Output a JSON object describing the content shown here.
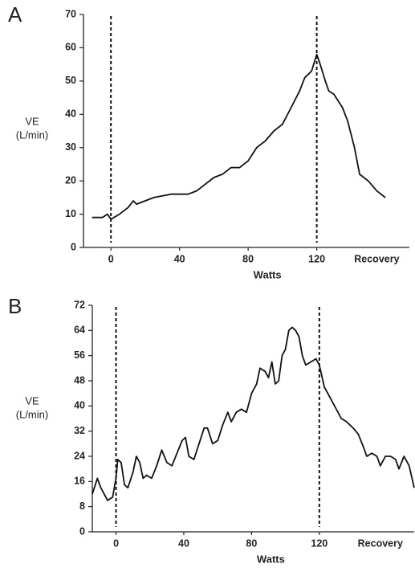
{
  "chart_data": [
    {
      "type": "line",
      "panel": "A",
      "ylabel": [
        "VE",
        "(L/min)"
      ],
      "xlabel": "Watts",
      "color": "#111111",
      "xlim": [
        -16,
        174
      ],
      "ylim": [
        0,
        70
      ],
      "xticks": [
        0,
        40,
        80,
        120,
        {
          "value": 155,
          "label": "Recovery"
        }
      ],
      "yticks": [
        0,
        10,
        20,
        30,
        40,
        50,
        60,
        70
      ],
      "vlines": [
        0,
        120
      ],
      "x": [
        -11,
        -5,
        -2,
        0,
        5,
        10,
        13,
        15,
        20,
        25,
        35,
        45,
        50,
        55,
        60,
        65,
        70,
        75,
        80,
        85,
        90,
        95,
        100,
        105,
        110,
        113,
        117,
        120,
        122,
        125,
        127,
        130,
        135,
        138,
        142,
        145,
        150,
        155,
        160
      ],
      "values": [
        9,
        9,
        10,
        8.5,
        10,
        12,
        14,
        13,
        14,
        15,
        16,
        16,
        17,
        19,
        21,
        22,
        24,
        24,
        26,
        30,
        32,
        35,
        37,
        42,
        47,
        51,
        53,
        58,
        55,
        50,
        47,
        46,
        42,
        38,
        30,
        22,
        20,
        17,
        15
      ]
    },
    {
      "type": "line",
      "panel": "B",
      "ylabel": [
        "VE",
        "(L/min)"
      ],
      "xlabel": "Watts",
      "color": "#111111",
      "xlim": [
        -14,
        176
      ],
      "ylim": [
        0,
        72
      ],
      "xticks": [
        0,
        40,
        80,
        120,
        {
          "value": 156,
          "label": "Recovery"
        }
      ],
      "yticks": [
        0,
        8,
        16,
        24,
        32,
        40,
        48,
        56,
        64,
        72
      ],
      "vlines": [
        0,
        120
      ],
      "x": [
        -14,
        -11,
        -9,
        -5,
        -2,
        0,
        1,
        3,
        5,
        7,
        10,
        12,
        14,
        16,
        18,
        21,
        24,
        27,
        30,
        33,
        36,
        39,
        41,
        43,
        46,
        49,
        52,
        54,
        57,
        60,
        63,
        66,
        68,
        71,
        74,
        77,
        80,
        83,
        85,
        88,
        90,
        92,
        94,
        96,
        98,
        100,
        102,
        104,
        106,
        108,
        110,
        112,
        115,
        118,
        120,
        123,
        126,
        129,
        133,
        136,
        140,
        143,
        146,
        148,
        151,
        154,
        156,
        159,
        162,
        165,
        167,
        170,
        173,
        176
      ],
      "values": [
        12,
        17,
        14,
        10,
        11,
        17,
        23,
        22,
        15,
        14,
        19,
        24,
        22,
        17,
        18,
        17,
        21,
        26,
        22,
        21,
        25,
        29,
        30,
        24,
        23,
        28,
        33,
        33,
        28,
        29,
        34,
        38,
        35,
        38,
        39,
        38,
        44,
        47,
        52,
        51,
        49,
        54,
        47,
        48,
        56,
        58,
        64,
        65,
        64,
        62,
        56,
        53,
        54,
        55,
        53,
        46,
        43,
        40,
        36,
        35,
        33,
        31,
        27,
        24,
        25,
        24,
        21,
        24,
        24,
        23,
        20,
        24,
        21,
        14
      ]
    }
  ]
}
